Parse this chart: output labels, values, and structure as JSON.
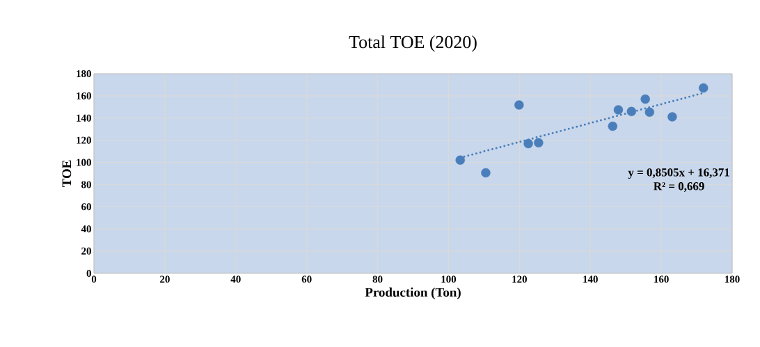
{
  "chart_data": {
    "type": "scatter",
    "title": "Total TOE (2020)",
    "xlabel": "Production (Ton)",
    "ylabel": "TOE",
    "series": [
      {
        "color": "#4a7ebb",
        "marker": "circle",
        "x": [
          103.3,
          110.5,
          119.9,
          122.5,
          125.4,
          146.3,
          147.9,
          151.6,
          155.5,
          156.7,
          163.1,
          171.9
        ],
        "values": [
          102.1,
          90.6,
          151.8,
          116.9,
          117.7,
          132.6,
          147.4,
          145.9,
          157.1,
          145.3,
          141.1,
          167.2
        ]
      },
      {
        "type": "line",
        "color": "#4a7ebb",
        "line_style": "dotted",
        "marker": "none",
        "x": [
          103.3,
          171.9
        ],
        "values": [
          104.2,
          162.6
        ]
      }
    ],
    "annotations": [
      "y = 0,8505x + 16,371",
      "R² = 0,669"
    ],
    "xlim": [
      0,
      180
    ],
    "xticks": [
      0,
      20,
      40,
      60,
      80,
      100,
      120,
      140,
      160,
      180
    ],
    "ylim": [
      0,
      180
    ],
    "yticks": [
      0,
      20,
      40,
      60,
      80,
      100,
      120,
      140,
      160,
      180
    ],
    "grid": true
  }
}
